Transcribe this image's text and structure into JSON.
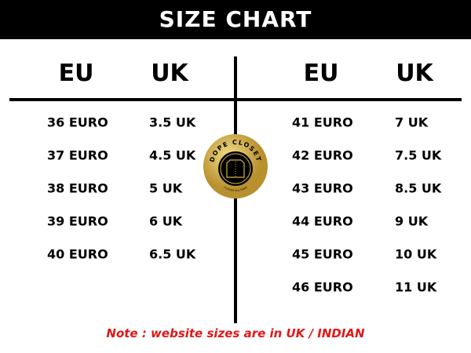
{
  "title": "SIZE CHART",
  "left": {
    "headers": [
      "EU",
      "UK"
    ],
    "rows": [
      [
        "36 EURO",
        "3.5 UK"
      ],
      [
        "37 EURO",
        "4.5 UK"
      ],
      [
        "38 EURO",
        "5 UK"
      ],
      [
        "39 EURO",
        "6 UK"
      ],
      [
        "40 EURO",
        "6.5 UK"
      ]
    ]
  },
  "right": {
    "headers": [
      "EU",
      "UK"
    ],
    "rows": [
      [
        "41 EURO",
        "7 UK"
      ],
      [
        "42 EURO",
        "7.5 UK"
      ],
      [
        "43 EURO",
        "8.5 UK"
      ],
      [
        "44 EURO",
        "9 UK"
      ],
      [
        "45 EURO",
        "10 UK"
      ],
      [
        "46 EURO",
        "11 UK"
      ]
    ]
  },
  "logo": {
    "name": "DOPE CLOSET",
    "tagline": "CLOTHES YOU CRAVE"
  },
  "note": "Note : website sizes are in UK / INDIAN",
  "colors": {
    "header_bg": "#000000",
    "note": "#e01818",
    "logo_gold": "#d4b24a"
  }
}
